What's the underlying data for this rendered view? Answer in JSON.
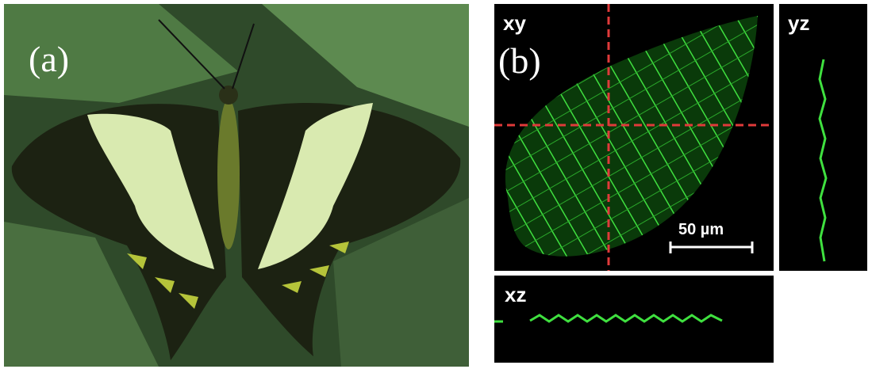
{
  "panel_a": {
    "label": "(a)"
  },
  "panel_b": {
    "label": "(b)",
    "views": {
      "xy": "xy",
      "yz": "yz",
      "xz": "xz"
    },
    "scale_bar": "50 µm"
  }
}
